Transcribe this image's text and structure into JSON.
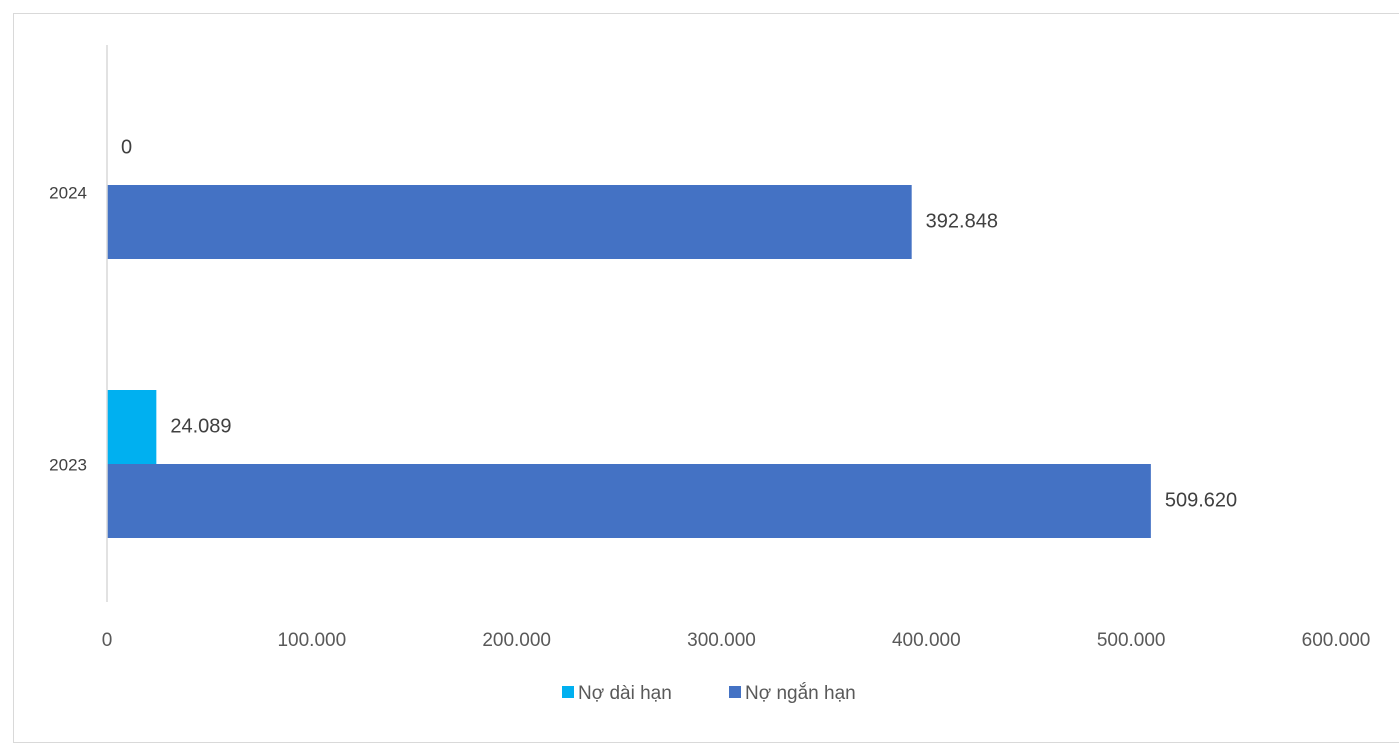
{
  "chart_data": {
    "type": "bar",
    "orientation": "horizontal",
    "categories": [
      "2024",
      "2023"
    ],
    "series": [
      {
        "name": "Nợ dài hạn",
        "values": [
          0,
          24089
        ],
        "labels": [
          "0",
          "24.089"
        ],
        "color": "#00b0f0"
      },
      {
        "name": "Nợ ngắn hạn",
        "values": [
          392848,
          509620
        ],
        "labels": [
          "392.848",
          "509.620"
        ],
        "color": "#4472c4"
      }
    ],
    "xlim": [
      0,
      600000
    ],
    "x_ticks": [
      0,
      100000,
      200000,
      300000,
      400000,
      500000,
      600000
    ],
    "x_tick_labels": [
      "0",
      "100.000",
      "200.000",
      "300.000",
      "400.000",
      "500.000",
      "600.000"
    ],
    "grid": false,
    "legend": "bottom"
  },
  "colors": {
    "axis": "#d9d9d9",
    "text": "#595959"
  }
}
